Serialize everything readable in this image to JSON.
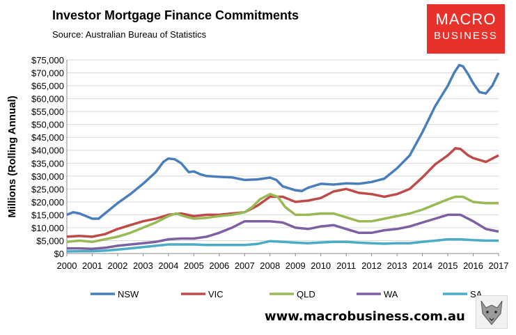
{
  "header": {
    "title": "Investor Mortgage Finance Commitments",
    "subtitle": "Source: Australian Bureau of Statistics"
  },
  "logo": {
    "line1": "MACRO",
    "line2": "BUSINESS"
  },
  "footer": {
    "url": "www.macrobusiness.com.au"
  },
  "chart_data": {
    "type": "line",
    "title": "Investor Mortgage Finance Commitments",
    "ylabel": "Millions (Rolling Annual)",
    "xlabel": "",
    "ylim": [
      0,
      75000
    ],
    "xlim": [
      2000,
      2017
    ],
    "yticks": [
      0,
      5000,
      10000,
      15000,
      20000,
      25000,
      30000,
      35000,
      40000,
      45000,
      50000,
      55000,
      60000,
      65000,
      70000,
      75000
    ],
    "ytick_labels": [
      "$0",
      "$5,000",
      "$10,000",
      "$15,000",
      "$20,000",
      "$25,000",
      "$30,000",
      "$35,000",
      "$40,000",
      "$45,000",
      "$50,000",
      "$55,000",
      "$60,000",
      "$65,000",
      "$70,000",
      "$75,000"
    ],
    "xticks": [
      2000,
      2001,
      2002,
      2003,
      2004,
      2005,
      2006,
      2007,
      2008,
      2009,
      2010,
      2011,
      2012,
      2013,
      2014,
      2015,
      2016,
      2017
    ],
    "xtick_labels": [
      "2000",
      "2001",
      "2002",
      "2003",
      "2004",
      "2005",
      "2006",
      "2007",
      "2008",
      "2009",
      "2010",
      "2011",
      "2012",
      "2013",
      "2014",
      "2015",
      "2016",
      "2017"
    ],
    "grid": "horizontal",
    "legend": "bottom",
    "series": [
      {
        "name": "NSW",
        "color": "#4a7ebb",
        "x": [
          2000,
          2000.25,
          2000.5,
          2000.75,
          2001,
          2001.25,
          2001.5,
          2002,
          2002.5,
          2003,
          2003.5,
          2003.8,
          2004,
          2004.25,
          2004.5,
          2004.8,
          2005,
          2005.25,
          2005.5,
          2006,
          2006.5,
          2007,
          2007.5,
          2008,
          2008.25,
          2008.5,
          2009,
          2009.25,
          2009.5,
          2010,
          2010.5,
          2011,
          2011.5,
          2012,
          2012.5,
          2013,
          2013.5,
          2014,
          2014.25,
          2014.5,
          2015,
          2015.25,
          2015.45,
          2015.6,
          2015.8,
          2016,
          2016.25,
          2016.5,
          2016.75,
          2017
        ],
        "y": [
          15000,
          16000,
          15500,
          14500,
          13500,
          13500,
          15500,
          19500,
          23000,
          27000,
          31500,
          35500,
          36800,
          36500,
          35000,
          31500,
          31800,
          30700,
          30000,
          29700,
          29500,
          28500,
          28700,
          29400,
          28500,
          26000,
          24500,
          24200,
          25500,
          27000,
          26700,
          27200,
          27000,
          27700,
          29000,
          33000,
          38000,
          47000,
          52000,
          57000,
          65000,
          70000,
          73000,
          72500,
          69500,
          66000,
          62500,
          62000,
          65000,
          70000
        ]
      },
      {
        "name": "VIC",
        "color": "#be4b48",
        "x": [
          2000,
          2000.5,
          2001,
          2001.5,
          2002,
          2002.5,
          2003,
          2003.5,
          2004,
          2004.5,
          2005,
          2005.5,
          2006,
          2006.5,
          2007,
          2007.5,
          2008,
          2008.5,
          2009,
          2009.5,
          2010,
          2010.5,
          2011,
          2011.5,
          2012,
          2012.5,
          2013,
          2013.5,
          2014,
          2014.5,
          2015,
          2015.3,
          2015.5,
          2015.8,
          2016,
          2016.5,
          2017
        ],
        "y": [
          6500,
          6800,
          6500,
          7500,
          9500,
          11000,
          12500,
          13500,
          15000,
          15500,
          14500,
          15000,
          15000,
          15500,
          16000,
          18500,
          22000,
          22000,
          20000,
          20500,
          21500,
          24000,
          25000,
          23500,
          23000,
          22000,
          23000,
          25000,
          29500,
          34500,
          38000,
          40800,
          40500,
          38000,
          37000,
          35500,
          38000
        ]
      },
      {
        "name": "QLD",
        "color": "#98b954",
        "x": [
          2000,
          2000.5,
          2001,
          2001.5,
          2002,
          2002.5,
          2003,
          2003.5,
          2004,
          2004.3,
          2004.6,
          2005,
          2005.5,
          2006,
          2006.5,
          2007,
          2007.3,
          2007.6,
          2008,
          2008.3,
          2008.6,
          2009,
          2009.5,
          2010,
          2010.5,
          2011,
          2011.5,
          2012,
          2012.5,
          2013,
          2013.5,
          2014,
          2014.5,
          2015,
          2015.3,
          2015.6,
          2016,
          2016.5,
          2017
        ],
        "y": [
          4500,
          5000,
          4500,
          5500,
          6500,
          8000,
          10000,
          12000,
          14500,
          15500,
          14500,
          13500,
          13800,
          14500,
          15000,
          16000,
          18000,
          21000,
          23000,
          22000,
          18000,
          15000,
          15000,
          15500,
          15500,
          14000,
          12500,
          12500,
          13500,
          14500,
          15500,
          17000,
          19000,
          21000,
          22000,
          22000,
          20000,
          19500,
          19500
        ]
      },
      {
        "name": "WA",
        "color": "#7d60a0",
        "x": [
          2000,
          2000.5,
          2001,
          2001.5,
          2002,
          2002.5,
          2003,
          2003.5,
          2004,
          2004.5,
          2005,
          2005.5,
          2006,
          2006.5,
          2007,
          2007.5,
          2008,
          2008.5,
          2009,
          2009.5,
          2010,
          2010.5,
          2011,
          2011.5,
          2012,
          2012.5,
          2013,
          2013.5,
          2014,
          2014.5,
          2015,
          2015.5,
          2016,
          2016.5,
          2017
        ],
        "y": [
          2000,
          2000,
          1800,
          2200,
          3000,
          3500,
          4000,
          4500,
          5500,
          5800,
          5800,
          6500,
          8000,
          10000,
          12500,
          12500,
          12500,
          12000,
          10000,
          9500,
          10500,
          11000,
          9500,
          8000,
          8000,
          9000,
          9500,
          10500,
          12000,
          13500,
          15000,
          15000,
          12500,
          9500,
          8500
        ]
      },
      {
        "name": "SA",
        "color": "#4bacc6",
        "x": [
          2000,
          2000.5,
          2001,
          2001.5,
          2002,
          2002.5,
          2003,
          2003.5,
          2004,
          2004.5,
          2005,
          2005.5,
          2006,
          2006.5,
          2007,
          2007.5,
          2008,
          2008.5,
          2009,
          2009.5,
          2010,
          2010.5,
          2011,
          2011.5,
          2012,
          2012.5,
          2013,
          2013.5,
          2014,
          2014.5,
          2015,
          2015.5,
          2016,
          2016.5,
          2017
        ],
        "y": [
          800,
          900,
          900,
          1100,
          1500,
          2000,
          2500,
          3000,
          3500,
          3500,
          3500,
          3300,
          3300,
          3300,
          3300,
          3700,
          4800,
          4500,
          4200,
          4000,
          4300,
          4500,
          4500,
          4200,
          4000,
          3800,
          4000,
          4000,
          4500,
          5000,
          5500,
          5500,
          5200,
          5000,
          5000
        ]
      }
    ]
  }
}
